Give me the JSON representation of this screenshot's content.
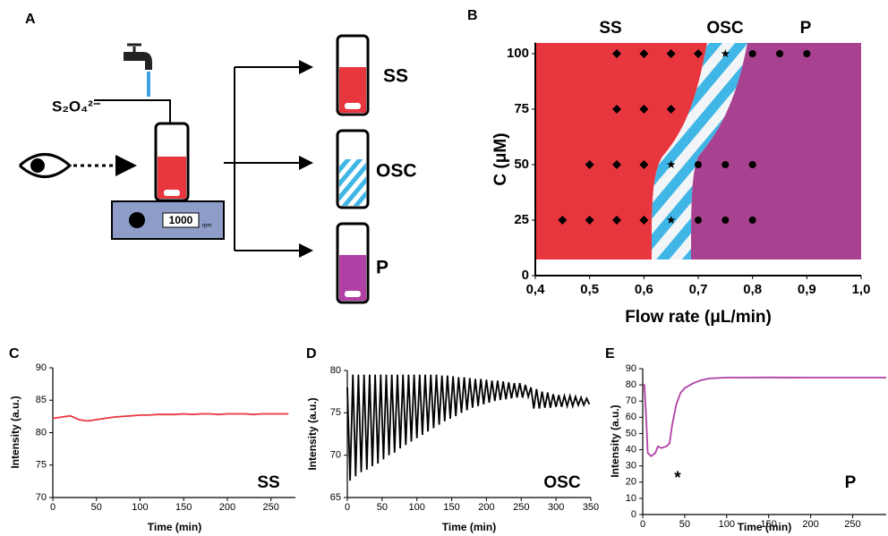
{
  "schematic": {
    "panel_label": "A",
    "reagent": "S₂O₄²⁻",
    "rpm_value": "1000",
    "rpm_unit": "rpm",
    "outcomes": [
      "SS",
      "OSC",
      "P"
    ]
  },
  "chart_data": [
    {
      "type": "scatter",
      "panel_label": "B",
      "xlabel": "Flow rate (μL/min)",
      "ylabel": "C (μM)",
      "region_labels": [
        "SS",
        "OSC",
        "P"
      ],
      "xlim": [
        0.4,
        1.0
      ],
      "ylim": [
        0,
        105
      ],
      "xticks": [
        {
          "value": 0.4,
          "label": "0,4"
        },
        {
          "value": 0.5,
          "label": "0,5"
        },
        {
          "value": 0.6,
          "label": "0,6"
        },
        {
          "value": 0.7,
          "label": "0,7"
        },
        {
          "value": 0.8,
          "label": "0,8"
        },
        {
          "value": 0.9,
          "label": "0,9"
        },
        {
          "value": 1.0,
          "label": "1,0"
        }
      ],
      "yticks": [
        0,
        25,
        50,
        75,
        100
      ],
      "series": [
        {
          "marker": "diamond",
          "color": "#000000",
          "x": [
            0.55,
            0.6,
            0.65,
            0.7,
            0.55,
            0.6,
            0.65,
            0.5,
            0.55,
            0.6,
            0.45,
            0.5,
            0.55,
            0.6
          ],
          "values": [
            100,
            100,
            100,
            100,
            75,
            75,
            75,
            50,
            50,
            50,
            25,
            25,
            25,
            25
          ]
        },
        {
          "marker": "star",
          "color": "#000000",
          "x": [
            0.75,
            0.65,
            0.65
          ],
          "values": [
            100,
            50,
            25
          ]
        },
        {
          "marker": "circle",
          "color": "#000000",
          "x": [
            0.8,
            0.85,
            0.9,
            0.7,
            0.75,
            0.8,
            0.7,
            0.75,
            0.8
          ],
          "values": [
            100,
            100,
            100,
            50,
            50,
            50,
            25,
            25,
            25
          ]
        }
      ]
    },
    {
      "type": "line",
      "panel_label": "C",
      "xlabel": "Time (min)",
      "ylabel": "Intensity (a.u.)",
      "annotations": [
        "SS"
      ],
      "color": "#e8363f",
      "xlim": [
        0,
        278
      ],
      "ylim": [
        70,
        90
      ],
      "xticks": [
        0,
        50,
        100,
        150,
        200,
        250
      ],
      "yticks": [
        70,
        75,
        80,
        85,
        90
      ],
      "x": [
        0,
        10,
        20,
        30,
        40,
        50,
        60,
        70,
        80,
        90,
        100,
        110,
        120,
        130,
        140,
        150,
        160,
        170,
        180,
        190,
        200,
        210,
        220,
        230,
        240,
        250,
        260,
        270
      ],
      "values": [
        82.2,
        82.4,
        82.6,
        82.0,
        81.8,
        82.0,
        82.2,
        82.4,
        82.5,
        82.6,
        82.7,
        82.7,
        82.8,
        82.8,
        82.8,
        82.9,
        82.8,
        82.9,
        82.9,
        82.8,
        82.9,
        82.9,
        82.9,
        82.8,
        82.9,
        82.9,
        82.9,
        82.9
      ]
    },
    {
      "type": "line",
      "panel_label": "D",
      "xlabel": "Time (min)",
      "ylabel": "Intensity (a.u.)",
      "annotations": [
        "OSC"
      ],
      "color": "#000000",
      "xlim": [
        0,
        350
      ],
      "ylim": [
        65,
        80
      ],
      "xticks": [
        0,
        50,
        100,
        150,
        200,
        250,
        300,
        350
      ],
      "yticks": [
        65,
        70,
        75,
        80
      ],
      "x": [
        0,
        4,
        8,
        12,
        16,
        20,
        24,
        28,
        32,
        36,
        40,
        44,
        48,
        52,
        56,
        60,
        64,
        68,
        72,
        76,
        80,
        84,
        88,
        92,
        96,
        100,
        104,
        108,
        112,
        116,
        120,
        124,
        128,
        132,
        136,
        140,
        144,
        148,
        152,
        156,
        160,
        164,
        168,
        172,
        176,
        180,
        184,
        188,
        192,
        196,
        200,
        204,
        208,
        212,
        216,
        220,
        224,
        228,
        232,
        236,
        240,
        244,
        248,
        252,
        256,
        260,
        264,
        268,
        272,
        276,
        280,
        284,
        288,
        292,
        296,
        300,
        304,
        308,
        312,
        316,
        320,
        324,
        328,
        332,
        336,
        340,
        344,
        348
      ],
      "values": [
        78,
        67,
        79.5,
        67.5,
        79.5,
        68,
        79.5,
        68.3,
        79.5,
        68.7,
        79.5,
        69,
        79.5,
        69.5,
        79.5,
        70,
        79.5,
        70.3,
        79.5,
        70.8,
        79.5,
        71.2,
        79.5,
        71.6,
        79.5,
        72,
        79.5,
        72.4,
        79.5,
        72.8,
        79.5,
        73.2,
        79.5,
        73.6,
        79.4,
        74,
        79.4,
        74.3,
        79.3,
        74.6,
        79.2,
        75,
        79.2,
        75.3,
        79.1,
        75.6,
        79,
        75.8,
        79,
        76,
        78.9,
        76.2,
        78.8,
        76.4,
        78.8,
        76.5,
        78.7,
        76.6,
        78.6,
        76.7,
        78.5,
        76.8,
        78.5,
        76.8,
        78.3,
        76.9,
        78,
        75.5,
        77.8,
        75.5,
        77.5,
        75.6,
        77.4,
        75.6,
        77.2,
        75.7,
        77.1,
        75.7,
        77,
        75.8,
        77,
        75.8,
        76.9,
        75.9,
        76.8,
        75.9,
        76.7,
        76
      ]
    },
    {
      "type": "line",
      "panel_label": "E",
      "xlabel": "Time (min)",
      "ylabel": "Intensity (a.u.)",
      "annotations": [
        "*",
        "P"
      ],
      "color": "#b03fa6",
      "xlim": [
        0,
        290
      ],
      "ylim": [
        0,
        90
      ],
      "xticks": [
        0,
        50,
        100,
        150,
        200,
        250
      ],
      "yticks": [
        0,
        10,
        20,
        30,
        40,
        50,
        60,
        70,
        80,
        90
      ],
      "x": [
        0,
        2,
        4,
        6,
        10,
        15,
        18,
        22,
        28,
        32,
        35,
        40,
        45,
        50,
        60,
        70,
        80,
        100,
        150,
        200,
        250,
        290
      ],
      "values": [
        80,
        80,
        60,
        38,
        36,
        38,
        42,
        41,
        42,
        44,
        55,
        68,
        75,
        78,
        81,
        83,
        84,
        84.5,
        84.6,
        84.5,
        84.5,
        84.5
      ]
    }
  ]
}
